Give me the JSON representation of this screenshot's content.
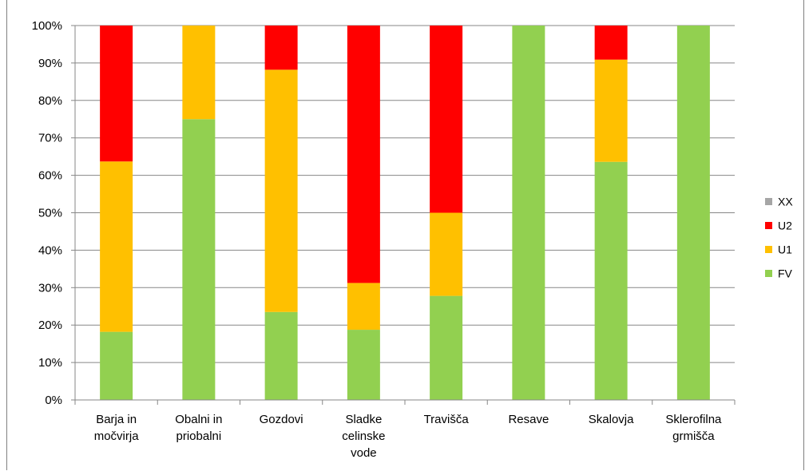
{
  "chart_data": {
    "type": "bar",
    "stacked": true,
    "percent": true,
    "title": "",
    "xlabel": "",
    "ylabel": "",
    "ylim": [
      0,
      100
    ],
    "yticks": [
      "0%",
      "10%",
      "20%",
      "30%",
      "40%",
      "50%",
      "60%",
      "70%",
      "80%",
      "90%",
      "100%"
    ],
    "grid": true,
    "legend_position": "right",
    "categories": [
      [
        "Barja in",
        "močvirja"
      ],
      [
        "Obalni in",
        "priobalni"
      ],
      [
        "Gozdovi"
      ],
      [
        "Sladke",
        "celinske",
        "vode"
      ],
      [
        "Travišča"
      ],
      [
        "Resave"
      ],
      [
        "Skalovja"
      ],
      [
        "Sklerofilna",
        "grmišča"
      ]
    ],
    "series": [
      {
        "name": "FV",
        "color": "#92D050",
        "values": [
          18.2,
          75.0,
          23.5,
          18.75,
          27.8,
          100,
          63.6,
          100
        ]
      },
      {
        "name": "U1",
        "color": "#FFC000",
        "values": [
          45.5,
          25.0,
          64.7,
          12.5,
          22.2,
          0,
          27.3,
          0
        ]
      },
      {
        "name": "U2",
        "color": "#FF0000",
        "values": [
          36.3,
          0,
          11.8,
          68.75,
          50.0,
          0,
          9.1,
          0
        ]
      },
      {
        "name": "XX",
        "color": "#A6A6A6",
        "values": [
          0,
          0,
          0,
          0,
          0,
          0,
          0,
          0
        ]
      }
    ],
    "legend_order": [
      "XX",
      "U2",
      "U1",
      "FV"
    ]
  }
}
